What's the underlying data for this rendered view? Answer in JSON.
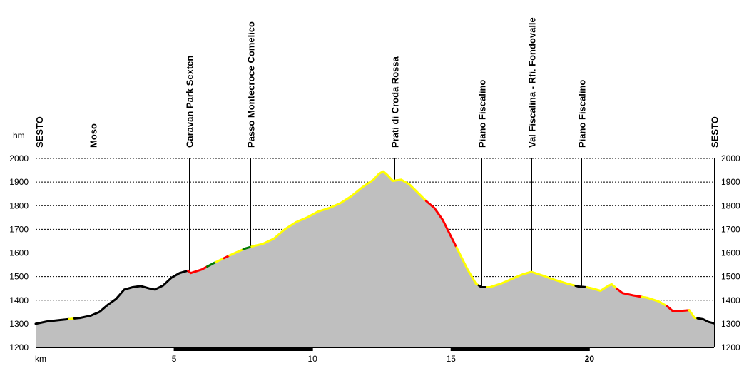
{
  "chart_data": {
    "type": "area",
    "y_unit_label": "hm",
    "x_unit_label": "km",
    "xlim": [
      0,
      24.5
    ],
    "ylim": [
      1200,
      2000
    ],
    "y_ticks": [
      1200,
      1300,
      1400,
      1500,
      1600,
      1700,
      1800,
      1900,
      2000
    ],
    "x_ticks": [
      {
        "value": 5,
        "label": "5",
        "bold": false
      },
      {
        "value": 10,
        "label": "10",
        "bold": false
      },
      {
        "value": 15,
        "label": "15",
        "bold": false
      },
      {
        "value": 20,
        "label": "20",
        "bold": true
      }
    ],
    "grid": true,
    "fill_color": "#bfbfbf",
    "waypoints": [
      {
        "km": 0.0,
        "label": "SESTO"
      },
      {
        "km": 2.05,
        "label": "Moso"
      },
      {
        "km": 5.55,
        "label": "Caravan Park Sexten"
      },
      {
        "km": 7.75,
        "label": "Passo Montecroce Comelico"
      },
      {
        "km": 12.95,
        "label": "Prati di Croda Rossa"
      },
      {
        "km": 16.1,
        "label": "Piano Fiscalino"
      },
      {
        "km": 17.9,
        "label": "Val Fiscalina - Rfi. Fondovalle"
      },
      {
        "km": 19.7,
        "label": "Piano Fiscalino"
      },
      {
        "km": 24.5,
        "label": "SESTO"
      }
    ],
    "profile": [
      [
        0.0,
        1300
      ],
      [
        0.4,
        1310
      ],
      [
        0.8,
        1315
      ],
      [
        1.2,
        1320
      ],
      [
        1.6,
        1325
      ],
      [
        2.0,
        1335
      ],
      [
        2.3,
        1350
      ],
      [
        2.6,
        1380
      ],
      [
        2.9,
        1405
      ],
      [
        3.2,
        1445
      ],
      [
        3.5,
        1455
      ],
      [
        3.8,
        1460
      ],
      [
        4.1,
        1450
      ],
      [
        4.3,
        1445
      ],
      [
        4.6,
        1462
      ],
      [
        4.9,
        1495
      ],
      [
        5.2,
        1515
      ],
      [
        5.5,
        1525
      ],
      [
        5.6,
        1515
      ],
      [
        6.0,
        1530
      ],
      [
        6.4,
        1555
      ],
      [
        6.8,
        1578
      ],
      [
        7.2,
        1600
      ],
      [
        7.6,
        1620
      ],
      [
        7.9,
        1630
      ],
      [
        8.2,
        1638
      ],
      [
        8.6,
        1660
      ],
      [
        9.0,
        1700
      ],
      [
        9.4,
        1730
      ],
      [
        9.8,
        1750
      ],
      [
        10.2,
        1775
      ],
      [
        10.6,
        1790
      ],
      [
        11.0,
        1810
      ],
      [
        11.4,
        1840
      ],
      [
        11.8,
        1878
      ],
      [
        12.2,
        1910
      ],
      [
        12.4,
        1935
      ],
      [
        12.55,
        1945
      ],
      [
        12.7,
        1930
      ],
      [
        12.9,
        1905
      ],
      [
        13.2,
        1910
      ],
      [
        13.5,
        1890
      ],
      [
        13.8,
        1855
      ],
      [
        14.1,
        1820
      ],
      [
        14.4,
        1790
      ],
      [
        14.7,
        1740
      ],
      [
        15.0,
        1670
      ],
      [
        15.3,
        1600
      ],
      [
        15.6,
        1530
      ],
      [
        15.9,
        1470
      ],
      [
        16.1,
        1455
      ],
      [
        16.4,
        1455
      ],
      [
        16.8,
        1470
      ],
      [
        17.2,
        1490
      ],
      [
        17.6,
        1510
      ],
      [
        17.9,
        1520
      ],
      [
        18.3,
        1505
      ],
      [
        18.7,
        1488
      ],
      [
        19.2,
        1470
      ],
      [
        19.6,
        1458
      ],
      [
        19.9,
        1455
      ],
      [
        20.1,
        1450
      ],
      [
        20.4,
        1440
      ],
      [
        20.6,
        1455
      ],
      [
        20.8,
        1468
      ],
      [
        21.0,
        1448
      ],
      [
        21.2,
        1430
      ],
      [
        21.6,
        1420
      ],
      [
        22.1,
        1410
      ],
      [
        22.5,
        1395
      ],
      [
        22.8,
        1375
      ],
      [
        23.0,
        1355
      ],
      [
        23.3,
        1355
      ],
      [
        23.6,
        1358
      ],
      [
        23.8,
        1325
      ],
      [
        24.1,
        1320
      ],
      [
        24.3,
        1308
      ],
      [
        24.5,
        1302
      ]
    ],
    "segments": [
      {
        "from": 0.0,
        "to": 1.2,
        "color": "#000000"
      },
      {
        "from": 1.2,
        "to": 1.4,
        "color": "#ffff00"
      },
      {
        "from": 1.4,
        "to": 5.5,
        "color": "#000000"
      },
      {
        "from": 5.5,
        "to": 6.2,
        "color": "#ff0000"
      },
      {
        "from": 6.2,
        "to": 6.5,
        "color": "#007a00"
      },
      {
        "from": 6.5,
        "to": 6.8,
        "color": "#ffff00"
      },
      {
        "from": 6.8,
        "to": 7.0,
        "color": "#ff0000"
      },
      {
        "from": 7.0,
        "to": 7.5,
        "color": "#ffff00"
      },
      {
        "from": 7.5,
        "to": 7.8,
        "color": "#007a00"
      },
      {
        "from": 7.8,
        "to": 14.1,
        "color": "#ffff00"
      },
      {
        "from": 14.1,
        "to": 15.2,
        "color": "#ff0000"
      },
      {
        "from": 15.2,
        "to": 16.0,
        "color": "#ffff00"
      },
      {
        "from": 16.0,
        "to": 16.3,
        "color": "#000000"
      },
      {
        "from": 16.3,
        "to": 19.5,
        "color": "#ffff00"
      },
      {
        "from": 19.5,
        "to": 19.9,
        "color": "#000000"
      },
      {
        "from": 19.9,
        "to": 21.0,
        "color": "#ffff00"
      },
      {
        "from": 21.0,
        "to": 21.9,
        "color": "#ff0000"
      },
      {
        "from": 21.9,
        "to": 22.8,
        "color": "#ffff00"
      },
      {
        "from": 22.8,
        "to": 23.6,
        "color": "#ff0000"
      },
      {
        "from": 23.6,
        "to": 23.9,
        "color": "#ffff00"
      },
      {
        "from": 23.9,
        "to": 24.5,
        "color": "#000000"
      }
    ],
    "axis_bar_segments": [
      {
        "from": 5,
        "to": 10
      },
      {
        "from": 15,
        "to": 20
      }
    ]
  }
}
